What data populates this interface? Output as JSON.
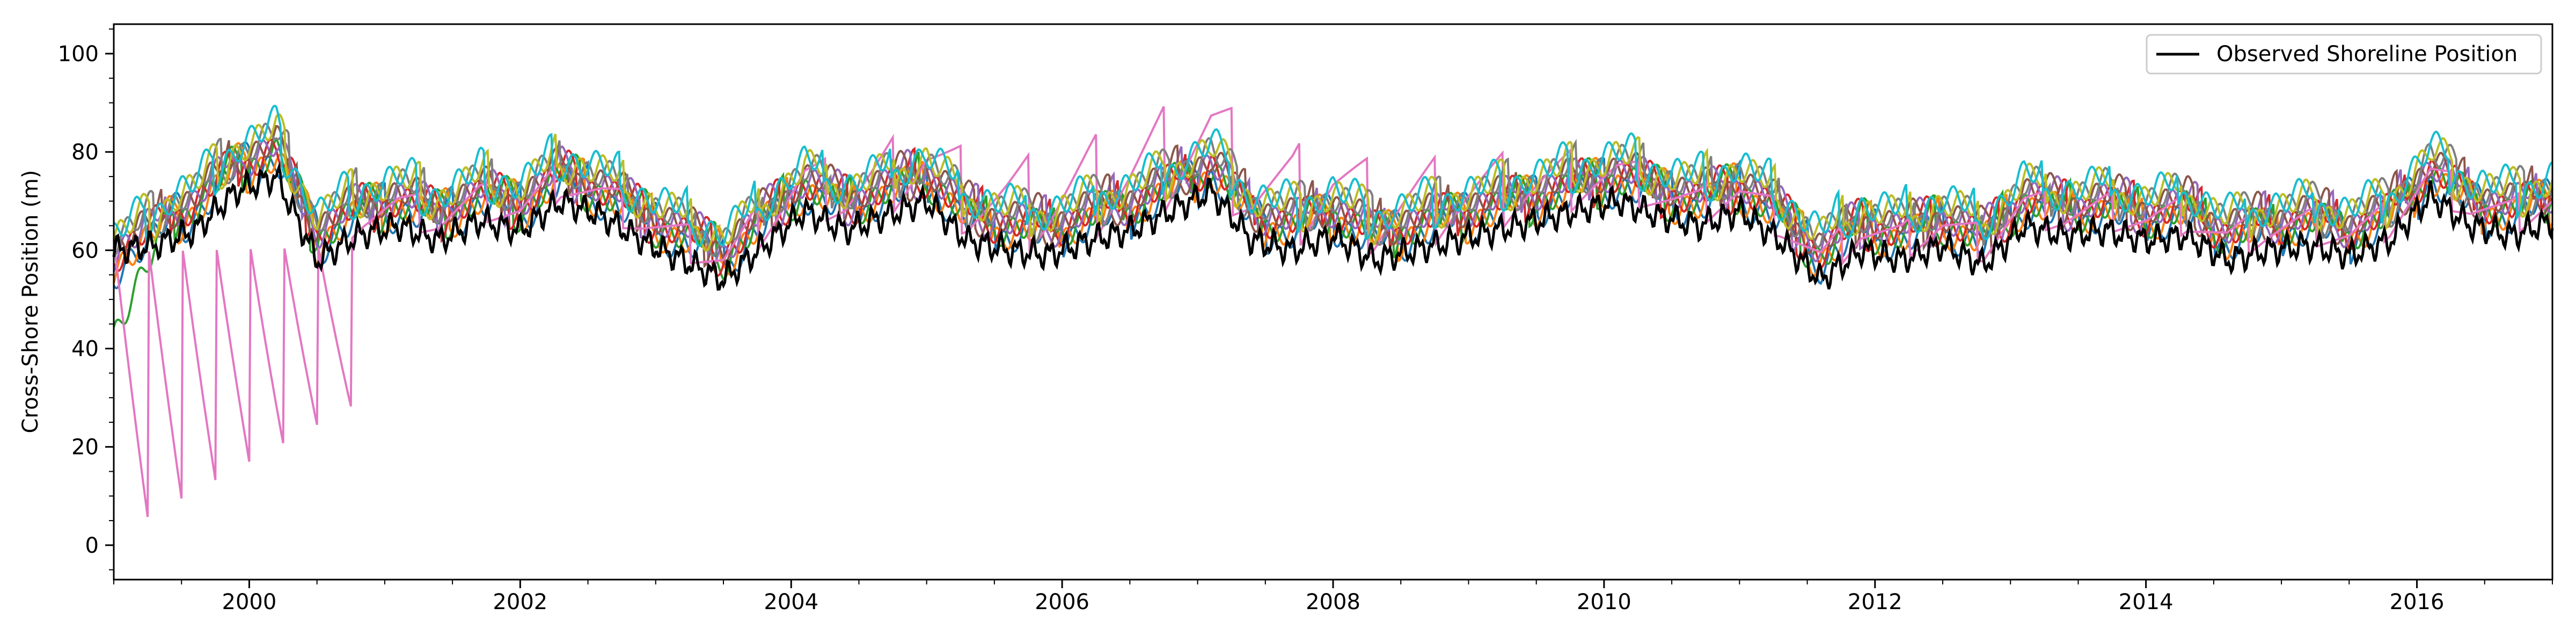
{
  "chart_data": {
    "type": "line",
    "title": "",
    "xlabel": "",
    "ylabel": "Cross-Shore Position (m)",
    "xlim": [
      1999.0,
      2017.0
    ],
    "ylim": [
      -7,
      106
    ],
    "x_ticks": [
      2000,
      2002,
      2004,
      2006,
      2008,
      2010,
      2012,
      2014,
      2016
    ],
    "y_ticks": [
      0,
      20,
      40,
      60,
      80,
      100
    ],
    "grid": false,
    "legend": {
      "location": "top-right",
      "entries": [
        "Observed Shoreline Position"
      ]
    },
    "observed": {
      "name": "Observed Shoreline Position",
      "color": "#000000",
      "x": [
        1999.0,
        1999.3,
        1999.6,
        1999.9,
        2000.2,
        2000.5,
        2000.8,
        2001.1,
        2001.4,
        2001.7,
        2002.0,
        2002.3,
        2002.6,
        2002.9,
        2003.2,
        2003.5,
        2003.8,
        2004.1,
        2004.4,
        2004.7,
        2005.0,
        2005.3,
        2005.6,
        2005.9,
        2006.2,
        2006.5,
        2006.8,
        2007.1,
        2007.4,
        2007.7,
        2008.0,
        2008.3,
        2008.6,
        2008.9,
        2009.2,
        2009.5,
        2009.8,
        2010.1,
        2010.4,
        2010.7,
        2011.0,
        2011.3,
        2011.6,
        2011.9,
        2012.2,
        2012.5,
        2012.8,
        2013.1,
        2013.4,
        2013.7,
        2014.0,
        2014.3,
        2014.6,
        2014.9,
        2015.2,
        2015.5,
        2015.8,
        2016.1,
        2016.4,
        2016.7,
        2017.0
      ],
      "y": [
        60,
        61,
        64,
        72,
        75,
        58,
        63,
        65,
        62,
        66,
        64,
        70,
        67,
        62,
        58,
        54,
        61,
        68,
        64,
        67,
        70,
        62,
        60,
        59,
        62,
        64,
        68,
        72,
        62,
        60,
        63,
        58,
        60,
        62,
        64,
        66,
        68,
        70,
        67,
        65,
        68,
        62,
        54,
        60,
        58,
        61,
        57,
        65,
        63,
        64,
        62,
        63,
        58,
        60,
        61,
        59,
        62,
        71,
        65,
        63,
        66
      ]
    },
    "ensemble_colors": [
      "#1f77b4",
      "#ff7f0e",
      "#2ca02c",
      "#d62728",
      "#9467bd",
      "#8c564b",
      "#e377c2",
      "#7f7f7f",
      "#bcbd22",
      "#17becf"
    ]
  }
}
